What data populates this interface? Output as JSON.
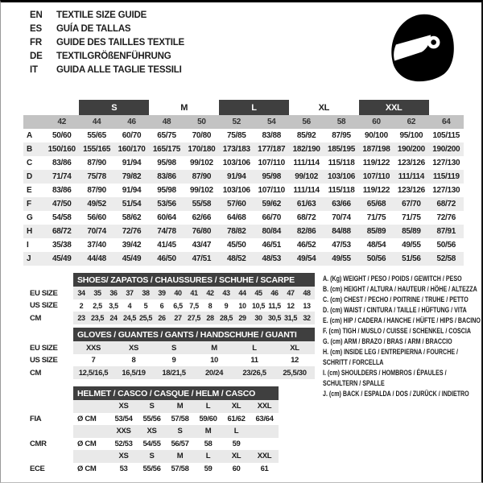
{
  "header": {
    "languages": [
      {
        "code": "EN",
        "text": "TEXTILE SIZE GUIDE"
      },
      {
        "code": "ES",
        "text": "GUÍA DE TALLAS"
      },
      {
        "code": "FR",
        "text": "GUIDE DES TAILLES TEXTILE"
      },
      {
        "code": "DE",
        "text": "TEXTILGRÖßENFÜHRUNG"
      },
      {
        "code": "IT",
        "text": "GUIDA ALLE TAGLIE TESSILI"
      }
    ],
    "icon": "full-face-helmet"
  },
  "colors": {
    "dark_bar": "#3f3f3f",
    "size_band": "#c3c3c3",
    "row_stripe": "#ececec",
    "sub_shade": "#e9e9e9",
    "text": "#1d1d1d"
  },
  "main_table": {
    "size_groups": [
      {
        "label": "S",
        "dark": true
      },
      {
        "label": "M",
        "dark": false
      },
      {
        "label": "L",
        "dark": true
      },
      {
        "label": "XL",
        "dark": false
      },
      {
        "label": "XXL",
        "dark": true
      }
    ],
    "sizes": [
      "42",
      "44",
      "46",
      "48",
      "50",
      "52",
      "54",
      "56",
      "58",
      "60",
      "62",
      "64"
    ],
    "rows": [
      {
        "label": "A",
        "values": [
          "50/60",
          "55/65",
          "60/70",
          "65/75",
          "70/80",
          "75/85",
          "83/88",
          "85/92",
          "87/95",
          "90/100",
          "95/100",
          "105/115"
        ]
      },
      {
        "label": "B",
        "values": [
          "150/160",
          "155/165",
          "160/170",
          "165/175",
          "170/180",
          "173/183",
          "177/187",
          "182/190",
          "185/195",
          "187/198",
          "190/200",
          "190/200"
        ]
      },
      {
        "label": "C",
        "values": [
          "83/86",
          "87/90",
          "91/94",
          "95/98",
          "99/102",
          "103/106",
          "107/110",
          "111/114",
          "115/118",
          "119/122",
          "123/126",
          "127/130"
        ]
      },
      {
        "label": "D",
        "values": [
          "71/74",
          "75/78",
          "79/82",
          "83/86",
          "87/90",
          "91/94",
          "95/98",
          "99/102",
          "103/106",
          "107/110",
          "111/114",
          "115/119"
        ]
      },
      {
        "label": "E",
        "values": [
          "83/86",
          "87/90",
          "91/94",
          "95/98",
          "99/102",
          "103/106",
          "107/110",
          "111/114",
          "115/118",
          "119/122",
          "123/126",
          "127/130"
        ]
      },
      {
        "label": "F",
        "values": [
          "47/50",
          "49/52",
          "51/54",
          "53/56",
          "55/58",
          "57/60",
          "59/62",
          "61/63",
          "63/66",
          "65/68",
          "67/70",
          "68/72"
        ]
      },
      {
        "label": "G",
        "values": [
          "54/58",
          "56/60",
          "58/62",
          "60/64",
          "62/66",
          "64/68",
          "66/70",
          "68/72",
          "70/74",
          "71/75",
          "71/75",
          "72/76"
        ]
      },
      {
        "label": "H",
        "values": [
          "68/72",
          "70/74",
          "72/76",
          "74/78",
          "76/80",
          "78/82",
          "80/84",
          "82/86",
          "84/88",
          "85/89",
          "85/89",
          "87/91"
        ]
      },
      {
        "label": "I",
        "values": [
          "35/38",
          "37/40",
          "39/42",
          "41/45",
          "43/47",
          "45/50",
          "46/51",
          "46/52",
          "47/53",
          "48/54",
          "49/55",
          "50/56"
        ]
      },
      {
        "label": "J",
        "values": [
          "45/49",
          "44/48",
          "45/49",
          "46/50",
          "47/51",
          "48/52",
          "48/53",
          "49/54",
          "49/55",
          "50/56",
          "51/56",
          "52/58"
        ]
      }
    ]
  },
  "shoes_table": {
    "title": "SHOES/ ZAPATOS / CHAUSSURES / SCHUHE / SCARPE",
    "rows": [
      {
        "label": "EU SIZE",
        "shaded": true,
        "values": [
          "34",
          "35",
          "36",
          "37",
          "38",
          "39",
          "40",
          "41",
          "42",
          "43",
          "44",
          "45",
          "46",
          "47",
          "48"
        ]
      },
      {
        "label": "US SIZE",
        "shaded": false,
        "values": [
          "2",
          "2,5",
          "3,5",
          "4",
          "5",
          "6",
          "6,5",
          "7,5",
          "8",
          "9",
          "10",
          "10,5",
          "11,5",
          "12",
          "13"
        ]
      },
      {
        "label": "CM",
        "shaded": true,
        "values": [
          "23",
          "23,5",
          "24",
          "24,5",
          "25,5",
          "26",
          "27",
          "27,5",
          "28",
          "28,5",
          "29",
          "30",
          "30,5",
          "31,5",
          "32"
        ]
      }
    ]
  },
  "gloves_table": {
    "title": "GLOVES / GUANTES / GANTS / HANDSCHUHE / GUANTI",
    "rows": [
      {
        "label": "EU SIZE",
        "shaded": true,
        "values": [
          "XXS",
          "XS",
          "S",
          "M",
          "L",
          "XL"
        ]
      },
      {
        "label": "US SIZE",
        "shaded": false,
        "values": [
          "7",
          "8",
          "9",
          "10",
          "11",
          "12"
        ]
      },
      {
        "label": "CM",
        "shaded": true,
        "values": [
          "12,5/16,5",
          "16,5/19",
          "18/21,5",
          "20/24",
          "23/26,5",
          "25,5/30"
        ]
      }
    ]
  },
  "helmet_table": {
    "title": "HELMET / CASCO / CASQUE / HELM / CASCO",
    "sections": [
      {
        "label": "FIA",
        "unit": "Ø CM",
        "sizes": [
          "XS",
          "S",
          "M",
          "L",
          "XL",
          "XXL"
        ],
        "values": [
          "53/54",
          "55/56",
          "57/58",
          "59/60",
          "61/62",
          "63/64"
        ]
      },
      {
        "label": "CMR",
        "unit": "Ø CM",
        "sizes": [
          "XXS",
          "XS",
          "S",
          "M",
          "L",
          ""
        ],
        "values": [
          "52/53",
          "54/55",
          "56/57",
          "58",
          "59",
          ""
        ]
      },
      {
        "label": "ECE",
        "unit": "Ø CM",
        "sizes": [
          "XS",
          "S",
          "M",
          "L",
          "XL",
          "XXL"
        ],
        "values": [
          "53",
          "55/56",
          "57/58",
          "59",
          "60",
          "61"
        ]
      }
    ]
  },
  "legend": {
    "lines": [
      "A. (Kg) WEIGHT / PESO / POIDS / GEWITCH / PESO",
      "B. (cm) HEIGHT / ALTURA / HAUTEUR / HÖHE / ALTEZZA",
      "C. (cm) CHEST / PECHO / POITRINE / TRUHE / PETTO",
      "D. (cm) WAIST / CINTURA / TAILLE / HÜFTUNG / VITA",
      "E. (cm) HIP / CADERA / HANCHE / HÜFTE / HIPS / BACINO",
      "F. (cm) TIGH / MUSLO / CUISSE / SCHENKEL / COSCIA",
      "G. (cm) ARM / BRAZO / BRAS / ARM / BRACCIO",
      "H. (cm) INSIDE LEG / ENTREPIERNA / FOURCHE /",
      "SCHRITT / FORCELLA",
      "I. (cm) SHOULDERS / HOMBROS / ÉPAULES /",
      "SCHULTERN / SPALLE",
      "J. (cm) BACK / ESPALDA / DOS / ZURÜCK / INDIETRO"
    ]
  }
}
